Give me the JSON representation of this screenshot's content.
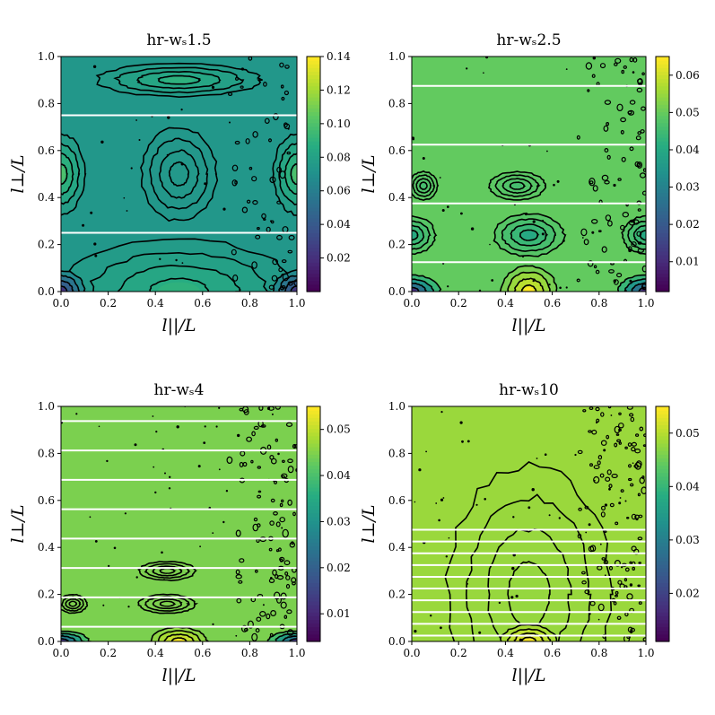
{
  "chart_data": [
    {
      "type": "heatmap",
      "title": "hr-wₛ1.5",
      "xlabel": "l||/L",
      "ylabel": "l⊥/L",
      "xlim": [
        0,
        1
      ],
      "ylim": [
        0,
        1
      ],
      "x_ticks": [
        "0.0",
        "0.2",
        "0.4",
        "0.6",
        "0.8",
        "1.0"
      ],
      "y_ticks": [
        "0.0",
        "0.2",
        "0.4",
        "0.6",
        "0.8",
        "1.0"
      ],
      "colorbar": {
        "range": [
          0.0,
          0.14
        ],
        "ticks": [
          "0.02",
          "0.04",
          "0.06",
          "0.08",
          "0.10",
          "0.12",
          "0.14"
        ],
        "tick_values": [
          0.02,
          0.04,
          0.06,
          0.08,
          0.1,
          0.12,
          0.14
        ],
        "colormap": "viridis"
      },
      "white_lines_y": [
        0.25,
        0.75
      ],
      "field_base": 0.53,
      "features": [
        {
          "x": 0.5,
          "y": 0.5,
          "rx": 0.16,
          "ry": 0.2,
          "value": 0.075
        },
        {
          "x": 0.0,
          "y": 0.5,
          "rx": 0.1,
          "ry": 0.17,
          "value": 0.1
        },
        {
          "x": 1.0,
          "y": 0.5,
          "rx": 0.1,
          "ry": 0.17,
          "value": 0.1
        },
        {
          "x": 0.5,
          "y": 0.0,
          "rx": 0.5,
          "ry": 0.22,
          "value": 0.09
        },
        {
          "x": 0.0,
          "y": 0.0,
          "rx": 0.1,
          "ry": 0.09,
          "value": 0.02
        },
        {
          "x": 1.0,
          "y": 0.0,
          "rx": 0.1,
          "ry": 0.09,
          "value": 0.02
        },
        {
          "x": 0.5,
          "y": 0.9,
          "rx": 0.35,
          "ry": 0.07,
          "value": 0.09
        }
      ],
      "noise_strength": 0.3,
      "noise_region": "right-edge"
    },
    {
      "type": "heatmap",
      "title": "hr-wₛ2.5",
      "xlabel": "l||/L",
      "ylabel": "l⊥/L",
      "xlim": [
        0,
        1
      ],
      "ylim": [
        0,
        1
      ],
      "x_ticks": [
        "0.0",
        "0.2",
        "0.4",
        "0.6",
        "0.8",
        "1.0"
      ],
      "y_ticks": [
        "0.0",
        "0.2",
        "0.4",
        "0.6",
        "0.8",
        "1.0"
      ],
      "colorbar": {
        "range": [
          0.002,
          0.065
        ],
        "ticks": [
          "0.01",
          "0.02",
          "0.03",
          "0.04",
          "0.05",
          "0.06"
        ],
        "tick_values": [
          0.01,
          0.02,
          0.03,
          0.04,
          0.05,
          0.06
        ],
        "colormap": "viridis"
      },
      "white_lines_y": [
        0.125,
        0.375,
        0.625,
        0.875
      ],
      "field_base": 0.76,
      "features": [
        {
          "x": 0.5,
          "y": 0.0,
          "rx": 0.12,
          "ry": 0.11,
          "value": 0.065
        },
        {
          "x": 0.5,
          "y": 0.24,
          "rx": 0.15,
          "ry": 0.09,
          "value": 0.04
        },
        {
          "x": 0.0,
          "y": 0.24,
          "rx": 0.1,
          "ry": 0.08,
          "value": 0.04
        },
        {
          "x": 1.0,
          "y": 0.24,
          "rx": 0.1,
          "ry": 0.08,
          "value": 0.04
        },
        {
          "x": 0.45,
          "y": 0.45,
          "rx": 0.12,
          "ry": 0.06,
          "value": 0.046
        },
        {
          "x": 0.05,
          "y": 0.45,
          "rx": 0.06,
          "ry": 0.06,
          "value": 0.046
        },
        {
          "x": 0.0,
          "y": 0.0,
          "rx": 0.12,
          "ry": 0.07,
          "value": 0.01
        },
        {
          "x": 1.0,
          "y": 0.0,
          "rx": 0.12,
          "ry": 0.07,
          "value": 0.01
        }
      ],
      "noise_strength": 0.45,
      "noise_region": "right-edge"
    },
    {
      "type": "heatmap",
      "title": "hr-wₛ4",
      "xlabel": "l||/L",
      "ylabel": "l⊥/L",
      "xlim": [
        0,
        1
      ],
      "ylim": [
        0,
        1
      ],
      "x_ticks": [
        "0.0",
        "0.2",
        "0.4",
        "0.6",
        "0.8",
        "1.0"
      ],
      "y_ticks": [
        "0.0",
        "0.2",
        "0.4",
        "0.6",
        "0.8",
        "1.0"
      ],
      "colorbar": {
        "range": [
          0.004,
          0.055
        ],
        "ticks": [
          "0.01",
          "0.02",
          "0.03",
          "0.04",
          "0.05"
        ],
        "tick_values": [
          0.01,
          0.02,
          0.03,
          0.04,
          0.05
        ],
        "colormap": "viridis"
      },
      "white_lines_y": [
        0.0625,
        0.1875,
        0.3125,
        0.4375,
        0.5625,
        0.6875,
        0.8125,
        0.9375
      ],
      "field_base": 0.8,
      "features": [
        {
          "x": 0.5,
          "y": 0.0,
          "rx": 0.12,
          "ry": 0.06,
          "value": 0.055
        },
        {
          "x": 0.0,
          "y": 0.0,
          "rx": 0.12,
          "ry": 0.045,
          "value": 0.012
        },
        {
          "x": 1.0,
          "y": 0.0,
          "rx": 0.12,
          "ry": 0.045,
          "value": 0.012
        },
        {
          "x": 0.45,
          "y": 0.16,
          "rx": 0.12,
          "ry": 0.04,
          "value": 0.045
        },
        {
          "x": 0.05,
          "y": 0.16,
          "rx": 0.06,
          "ry": 0.04,
          "value": 0.045
        },
        {
          "x": 0.45,
          "y": 0.3,
          "rx": 0.12,
          "ry": 0.04,
          "value": 0.045
        }
      ],
      "noise_strength": 0.55,
      "noise_region": "right-edge"
    },
    {
      "type": "heatmap",
      "title": "hr-wₛ10",
      "xlabel": "l||/L",
      "ylabel": "l⊥/L",
      "xlim": [
        0,
        1
      ],
      "ylim": [
        0,
        1
      ],
      "x_ticks": [
        "0.0",
        "0.2",
        "0.4",
        "0.6",
        "0.8",
        "1.0"
      ],
      "y_ticks": [
        "0.0",
        "0.2",
        "0.4",
        "0.6",
        "0.8",
        "1.0"
      ],
      "colorbar": {
        "range": [
          0.011,
          0.055
        ],
        "ticks": [
          "0.02",
          "0.03",
          "0.04",
          "0.05"
        ],
        "tick_values": [
          0.02,
          0.03,
          0.04,
          0.05
        ],
        "colormap": "viridis"
      },
      "white_lines_y": [
        0.025,
        0.075,
        0.125,
        0.175,
        0.225,
        0.275,
        0.325,
        0.375,
        0.425,
        0.475
      ],
      "field_base": 0.85,
      "features": [
        {
          "x": 0.5,
          "y": 0.2,
          "rx": 0.35,
          "ry": 0.55,
          "value": 0.048
        },
        {
          "x": 0.5,
          "y": 0.0,
          "rx": 0.12,
          "ry": 0.07,
          "value": 0.055
        }
      ],
      "noise_strength": 0.6,
      "noise_region": "right-edge"
    }
  ]
}
